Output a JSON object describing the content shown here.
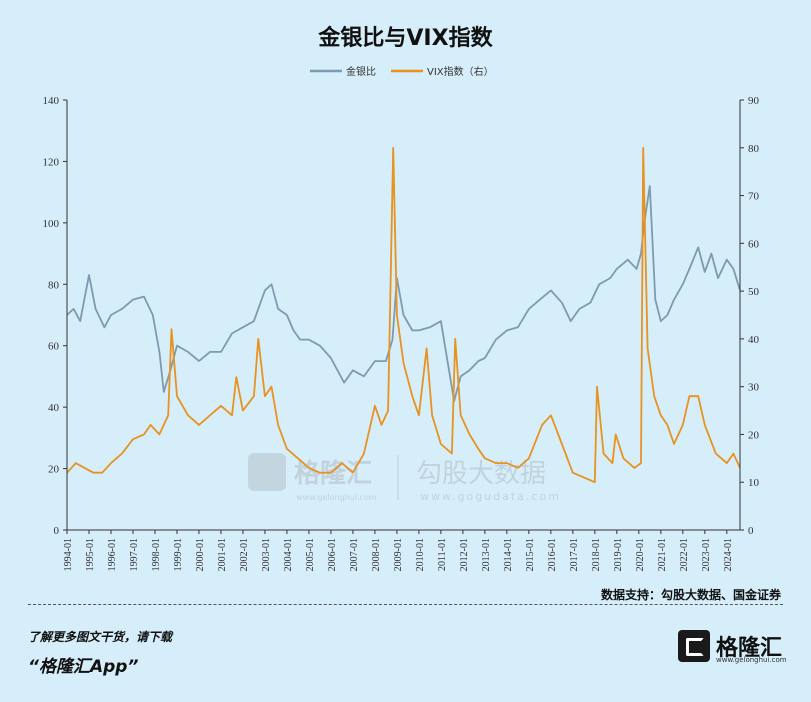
{
  "title": "金银比与VIX指数",
  "source": "数据支持：勾股大数据、国金证券",
  "promo": {
    "line1": "了解更多图文干货，请下载",
    "line2": "“格隆汇App”"
  },
  "logo": {
    "name": "格隆汇",
    "url": "www.gelonghui.com"
  },
  "watermark": {
    "brand1": "格隆汇",
    "url1": "www.gelonghui.com",
    "brand2": "勾股大数据",
    "url2": "www.gogudata.com"
  },
  "colors": {
    "gold_silver": "#7d9aae",
    "vix": "#e8921f",
    "background": "#d6eefa"
  },
  "chart_data": {
    "type": "line",
    "legend": [
      "金银比",
      "VIX指数（右）"
    ],
    "legend_position": "top-center",
    "grid": false,
    "left_axis": {
      "ylim": [
        0,
        140
      ],
      "ticks": [
        0,
        20,
        40,
        60,
        80,
        100,
        120,
        140
      ]
    },
    "right_axis": {
      "ylim": [
        0,
        90
      ],
      "ticks": [
        0,
        10,
        20,
        30,
        40,
        50,
        60,
        70,
        80,
        90
      ]
    },
    "x_range": [
      1994.0,
      2024.6
    ],
    "x_tick_labels": [
      "1994-01",
      "1995-01",
      "1996-01",
      "1997-01",
      "1998-01",
      "1999-01",
      "2000-01",
      "2001-01",
      "2002-01",
      "2003-01",
      "2004-01",
      "2005-01",
      "2006-01",
      "2007-01",
      "2008-01",
      "2009-01",
      "2010-01",
      "2011-01",
      "2012-01",
      "2013-01",
      "2014-01",
      "2015-01",
      "2016-01",
      "2017-01",
      "2018-01",
      "2019-01",
      "2020-01",
      "2021-01",
      "2022-01",
      "2023-01",
      "2024-01"
    ],
    "series": [
      {
        "name": "金银比",
        "axis": "left",
        "x": [
          1994.0,
          1994.3,
          1994.6,
          1995.0,
          1995.3,
          1995.7,
          1996.0,
          1996.5,
          1997.0,
          1997.5,
          1997.9,
          1998.2,
          1998.4,
          1998.7,
          1999.0,
          1999.5,
          2000.0,
          2000.5,
          2001.0,
          2001.5,
          2002.0,
          2002.5,
          2003.0,
          2003.3,
          2003.6,
          2004.0,
          2004.3,
          2004.6,
          2005.0,
          2005.5,
          2006.0,
          2006.3,
          2006.6,
          2007.0,
          2007.5,
          2008.0,
          2008.5,
          2008.8,
          2009.0,
          2009.3,
          2009.7,
          2010.0,
          2010.5,
          2011.0,
          2011.3,
          2011.6,
          2011.9,
          2012.3,
          2012.7,
          2013.0,
          2013.5,
          2014.0,
          2014.5,
          2015.0,
          2015.5,
          2016.0,
          2016.5,
          2016.9,
          2017.3,
          2017.8,
          2018.2,
          2018.7,
          2019.0,
          2019.5,
          2019.9,
          2020.1,
          2020.25,
          2020.5,
          2020.75,
          2021.0,
          2021.3,
          2021.6,
          2022.0,
          2022.3,
          2022.7,
          2023.0,
          2023.3,
          2023.6,
          2024.0,
          2024.3,
          2024.6
        ],
        "values": [
          70,
          72,
          68,
          83,
          72,
          66,
          70,
          72,
          75,
          76,
          70,
          58,
          45,
          52,
          60,
          58,
          55,
          58,
          58,
          64,
          66,
          68,
          78,
          80,
          72,
          70,
          65,
          62,
          62,
          60,
          56,
          52,
          48,
          52,
          50,
          55,
          55,
          62,
          82,
          70,
          65,
          65,
          66,
          68,
          55,
          42,
          50,
          52,
          55,
          56,
          62,
          65,
          66,
          72,
          75,
          78,
          74,
          68,
          72,
          74,
          80,
          82,
          85,
          88,
          85,
          90,
          100,
          112,
          75,
          68,
          70,
          75,
          80,
          85,
          92,
          84,
          90,
          82,
          88,
          85,
          78
        ]
      },
      {
        "name": "VIX指数（右）",
        "axis": "right",
        "x": [
          1994.0,
          1994.4,
          1994.8,
          1995.2,
          1995.6,
          1996.0,
          1996.5,
          1997.0,
          1997.5,
          1997.8,
          1998.2,
          1998.6,
          1998.75,
          1999.0,
          1999.5,
          2000.0,
          2000.5,
          2001.0,
          2001.5,
          2001.7,
          2002.0,
          2002.5,
          2002.7,
          2003.0,
          2003.3,
          2003.6,
          2004.0,
          2004.5,
          2005.0,
          2005.5,
          2006.0,
          2006.5,
          2007.0,
          2007.5,
          2008.0,
          2008.3,
          2008.6,
          2008.83,
          2009.0,
          2009.3,
          2009.7,
          2010.0,
          2010.35,
          2010.6,
          2011.0,
          2011.5,
          2011.65,
          2011.9,
          2012.3,
          2012.7,
          2013.0,
          2013.5,
          2014.0,
          2014.5,
          2015.0,
          2015.6,
          2016.0,
          2016.5,
          2017.0,
          2017.5,
          2018.0,
          2018.1,
          2018.4,
          2018.8,
          2018.95,
          2019.3,
          2019.8,
          2020.1,
          2020.2,
          2020.4,
          2020.7,
          2021.0,
          2021.3,
          2021.6,
          2022.0,
          2022.3,
          2022.7,
          2023.0,
          2023.5,
          2024.0,
          2024.3,
          2024.6
        ],
        "values": [
          12,
          14,
          13,
          12,
          12,
          14,
          16,
          19,
          20,
          22,
          20,
          24,
          42,
          28,
          24,
          22,
          24,
          26,
          24,
          32,
          25,
          28,
          40,
          28,
          30,
          22,
          17,
          15,
          13,
          12,
          12,
          14,
          12,
          16,
          26,
          22,
          25,
          80,
          45,
          35,
          28,
          24,
          38,
          24,
          18,
          16,
          40,
          24,
          20,
          17,
          15,
          14,
          14,
          13,
          15,
          22,
          24,
          18,
          12,
          11,
          10,
          30,
          16,
          14,
          20,
          15,
          13,
          14,
          80,
          38,
          28,
          24,
          22,
          18,
          22,
          28,
          28,
          22,
          16,
          14,
          16,
          13
        ]
      }
    ]
  }
}
